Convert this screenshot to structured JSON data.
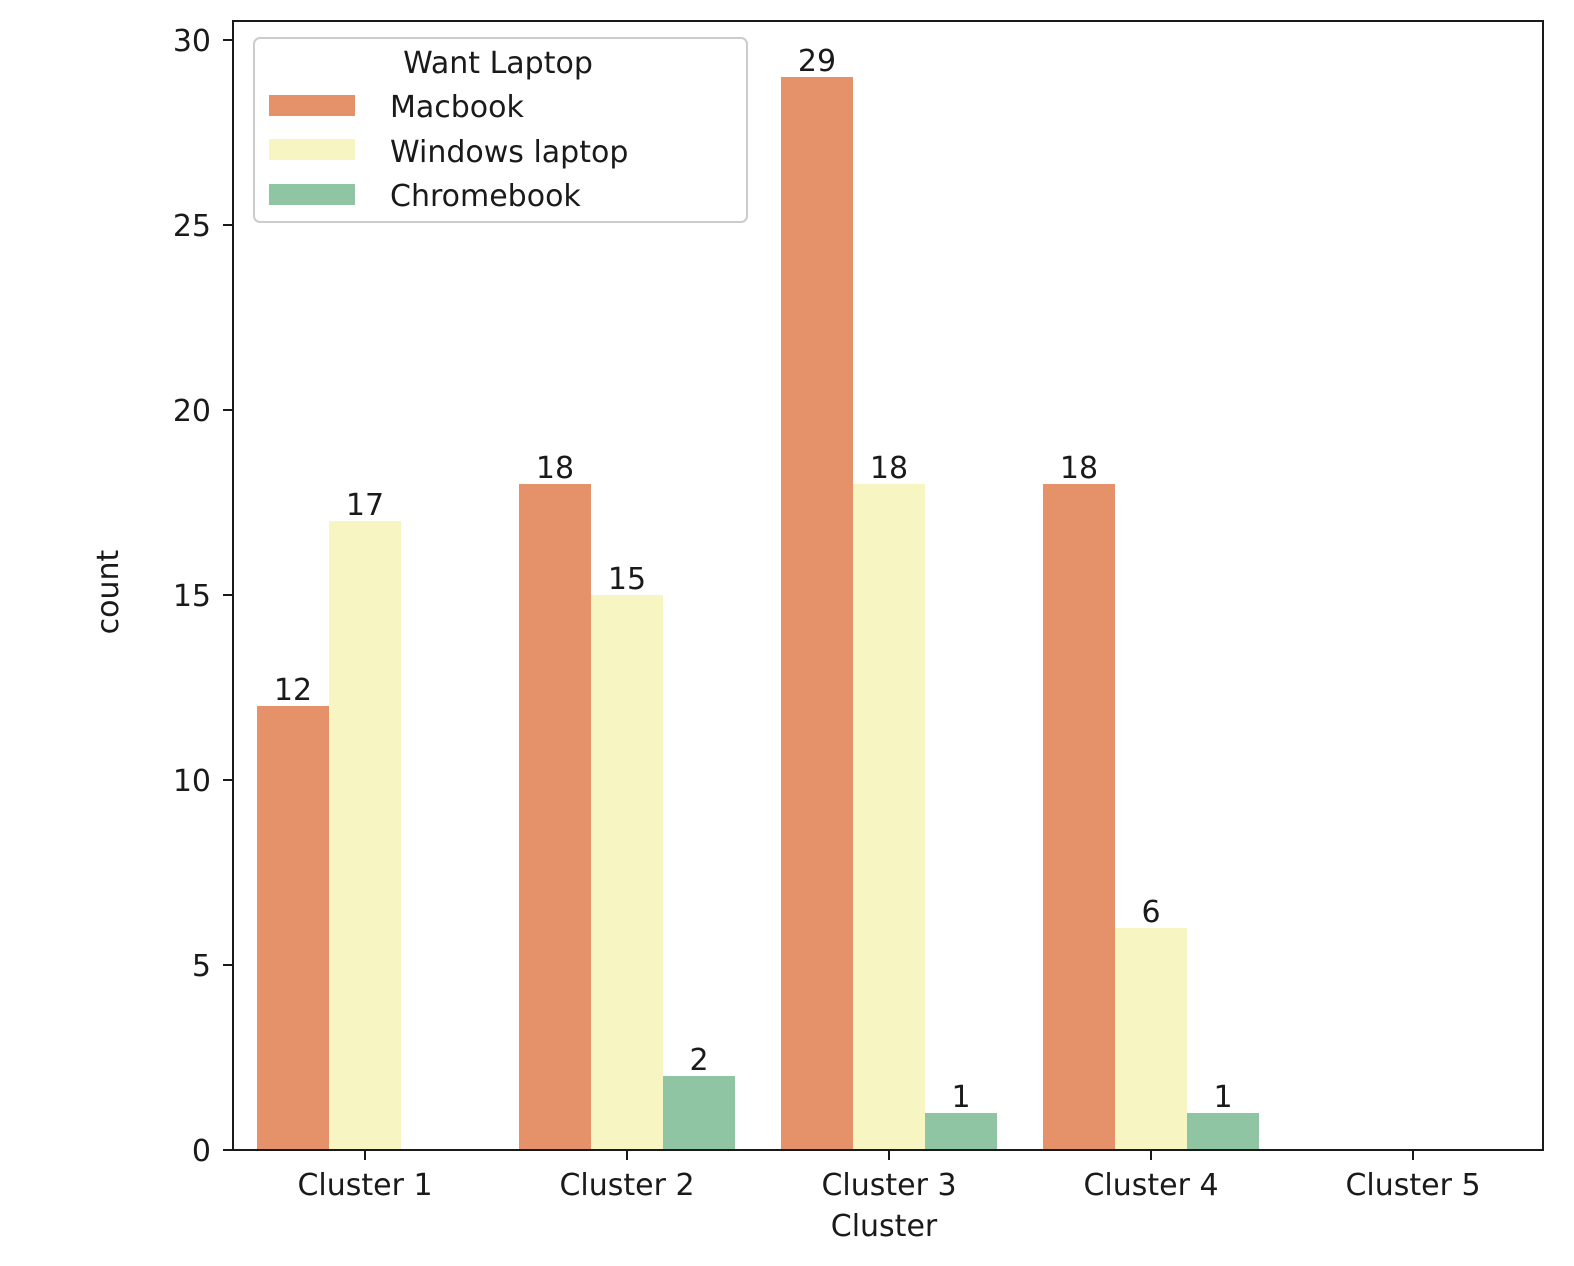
{
  "chart_data": {
    "type": "bar",
    "xlabel": "Cluster",
    "ylabel": "count",
    "categories": [
      "Cluster 1",
      "Cluster 2",
      "Cluster 3",
      "Cluster 4",
      "Cluster 5"
    ],
    "series": [
      {
        "name": "Macbook",
        "color": "#e5916a",
        "values": [
          12,
          18,
          29,
          18,
          0
        ]
      },
      {
        "name": "Windows laptop",
        "color": "#f7f6c3",
        "values": [
          17,
          15,
          18,
          6,
          0
        ]
      },
      {
        "name": "Chromebook",
        "color": "#8fc5a2",
        "values": [
          0,
          2,
          1,
          1,
          0
        ]
      }
    ],
    "data_labels": [
      [
        12,
        17,
        null,
        null,
        null
      ],
      [
        18,
        15,
        2,
        null,
        null
      ],
      [
        29,
        18,
        1,
        null,
        null
      ],
      [
        18,
        6,
        1,
        null,
        null
      ]
    ],
    "ylim": [
      0,
      30
    ],
    "yticks": [
      0,
      5,
      10,
      15,
      20,
      25,
      30
    ],
    "legend": {
      "title": "Want Laptop",
      "position": "upper-left"
    },
    "grid": false
  }
}
